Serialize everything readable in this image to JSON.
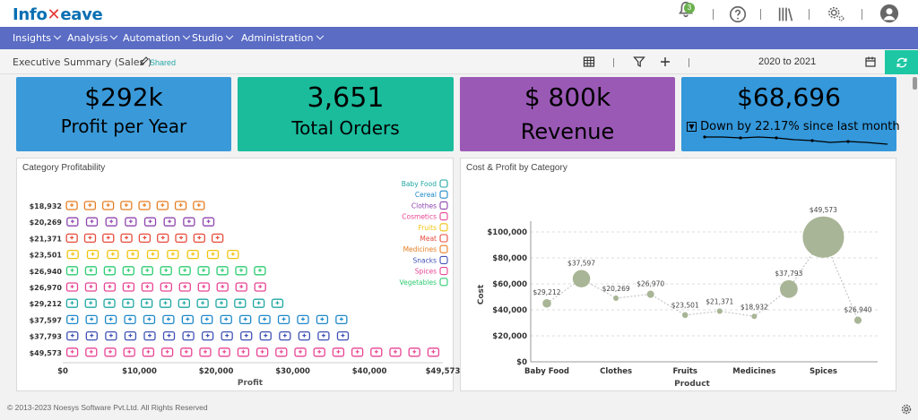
{
  "app": {
    "logo_text_a": "Info",
    "logo_text_b": "eave",
    "notification_count": "3"
  },
  "menu": [
    "Insights",
    "Analysis",
    "Automation",
    "Studio",
    "Administration"
  ],
  "subbar": {
    "title": "Executive Summary (Sales )",
    "shared_label": "Shared",
    "date_range": "2020 to 2021"
  },
  "kpis": [
    {
      "value": "$292k",
      "label": "Profit per Year",
      "color": "#3a9ad9"
    },
    {
      "value": "3,651",
      "label": "Total Orders",
      "color": "#1abc9c"
    },
    {
      "value": "$ 800k",
      "label": "Revenue",
      "color": "#9b59b6"
    },
    {
      "value": "$68,696",
      "label": "Down by 22.17% since last month",
      "color": "#3498db"
    }
  ],
  "footer": "© 2013-2023 Noesys Software Pvt.Ltd. All Rights Reserved",
  "chart_data": [
    {
      "type": "bar",
      "title": "Category Profitability",
      "xlabel": "Profit",
      "ylabel": "",
      "orientation": "horizontal",
      "xticks": [
        "$0",
        "$10,000",
        "$20,000",
        "$30,000",
        "$40,000",
        "$49,573"
      ],
      "xlim": [
        0,
        49573
      ],
      "series": [
        {
          "name": "Baby Food",
          "color": "#1ea7a0",
          "value": 29212
        },
        {
          "name": "Cereal",
          "color": "#1e88c8",
          "value": 37597
        },
        {
          "name": "Clothes",
          "color": "#8e44ad",
          "value": 20269
        },
        {
          "name": "Cosmetics",
          "color": "#e84393",
          "value": 26970
        },
        {
          "name": "Fruits",
          "color": "#f1c40f",
          "value": 23501
        },
        {
          "name": "Meat",
          "color": "#e74c3c",
          "value": 21371
        },
        {
          "name": "Medicines",
          "color": "#e67e22",
          "value": 18932
        },
        {
          "name": "Snacks",
          "color": "#3f51b5",
          "value": 37793
        },
        {
          "name": "Spices",
          "color": "#e84393",
          "value": 49573
        },
        {
          "name": "Vegetables",
          "color": "#2ecc71",
          "value": 26940
        }
      ],
      "rows": [
        {
          "label": "$18,932",
          "value": 18932,
          "category": "Medicines"
        },
        {
          "label": "$20,269",
          "value": 20269,
          "category": "Clothes"
        },
        {
          "label": "$21,371",
          "value": 21371,
          "category": "Meat"
        },
        {
          "label": "$23,501",
          "value": 23501,
          "category": "Fruits"
        },
        {
          "label": "$26,940",
          "value": 26940,
          "category": "Vegetables"
        },
        {
          "label": "$26,970",
          "value": 26970,
          "category": "Cosmetics"
        },
        {
          "label": "$29,212",
          "value": 29212,
          "category": "Baby Food"
        },
        {
          "label": "$37,597",
          "value": 37597,
          "category": "Cereal"
        },
        {
          "label": "$37,793",
          "value": 37793,
          "category": "Snacks"
        },
        {
          "label": "$49,573",
          "value": 49573,
          "category": "Spices"
        }
      ]
    },
    {
      "type": "scatter",
      "title": "Cost & Profit by Category",
      "xlabel": "Product",
      "ylabel": "Cost",
      "ylim": [
        0,
        110000
      ],
      "yticks": [
        "$0",
        "$20,000",
        "$40,000",
        "$60,000",
        "$80,000",
        "$100,000"
      ],
      "xticks": [
        "Baby Food",
        "Clothes",
        "Fruits",
        "Medicines",
        "Spices"
      ],
      "points": [
        {
          "x": "Baby Food",
          "cost": 45000,
          "profit": 29212,
          "label": "$29,212"
        },
        {
          "x": "Cereal",
          "cost": 64000,
          "profit": 37597,
          "label": "$37,597"
        },
        {
          "x": "Clothes",
          "cost": 49000,
          "profit": 20269,
          "label": "$20,269"
        },
        {
          "x": "Cosmetics",
          "cost": 52000,
          "profit": 26970,
          "label": "$26,970"
        },
        {
          "x": "Fruits",
          "cost": 36000,
          "profit": 23501,
          "label": "$23,501"
        },
        {
          "x": "Meat",
          "cost": 39000,
          "profit": 21371,
          "label": "$21,371"
        },
        {
          "x": "Medicines",
          "cost": 35000,
          "profit": 18932,
          "label": "$18,932"
        },
        {
          "x": "Snacks",
          "cost": 56000,
          "profit": 37793,
          "label": "$37,793"
        },
        {
          "x": "Spices",
          "cost": 96000,
          "profit": 49573,
          "label": "$49,573"
        },
        {
          "x": "Vegetables",
          "cost": 32000,
          "profit": 26940,
          "label": "$26,940"
        }
      ],
      "color": "#a8b596",
      "grid": true
    }
  ]
}
